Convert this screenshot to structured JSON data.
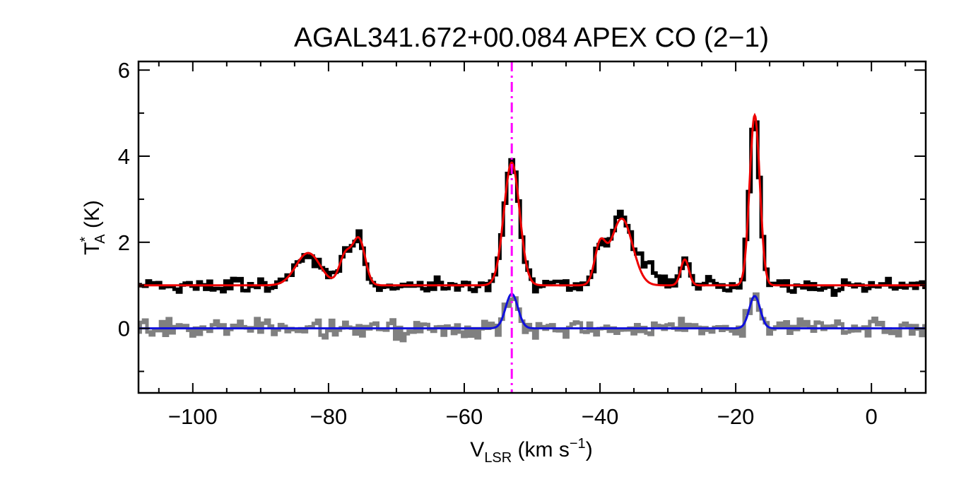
{
  "chart_data": {
    "type": "line",
    "title": "AGAL341.672+00.084  APEX CO (2−1)",
    "xlabel": {
      "main": "V",
      "sub": "LSR",
      "units_pre": " (km s",
      "units_sup": "−1",
      "units_post": ")"
    },
    "ylabel": {
      "main": "T",
      "sup": "*",
      "sub": "A",
      "units": " (K)"
    },
    "xlim": [
      -108,
      8
    ],
    "ylim": [
      -1.5,
      6.2
    ],
    "xticks": [
      -100,
      -80,
      -60,
      -40,
      -20,
      0
    ],
    "xtick_labels": [
      "−100",
      "−80",
      "−60",
      "−40",
      "−20",
      "0"
    ],
    "yticks": [
      0,
      2,
      4,
      6
    ],
    "ytick_labels": [
      "0",
      "2",
      "4",
      "6"
    ],
    "grid": false,
    "legend": "none",
    "marker_line": {
      "x": -53,
      "style": "dash-dot",
      "color": "#ff00ff"
    },
    "series": [
      {
        "role": "observed spectrum",
        "style": "step",
        "color": "#000000",
        "offset": 1.0,
        "noise_rms": 0.12,
        "components": [
          {
            "center": -83,
            "amp": 0.75,
            "sigma": 1.8
          },
          {
            "center": -77.5,
            "amp": 0.7,
            "sigma": 0.9
          },
          {
            "center": -75.5,
            "amp": 1.05,
            "sigma": 0.9
          },
          {
            "center": -53,
            "amp": 2.85,
            "sigma": 1.15
          },
          {
            "center": -40,
            "amp": 0.85,
            "sigma": 0.8
          },
          {
            "center": -36.8,
            "amp": 1.55,
            "sigma": 1.6
          },
          {
            "center": -33,
            "amp": 0.35,
            "sigma": 1.5
          },
          {
            "center": -27.5,
            "amp": 0.6,
            "sigma": 0.6
          },
          {
            "center": -17.2,
            "amp": 3.95,
            "sigma": 0.75
          }
        ]
      },
      {
        "role": "fit",
        "style": "line",
        "color": "#ee0000",
        "offset": 1.0,
        "components": [
          {
            "center": -83,
            "amp": 0.75,
            "sigma": 1.8
          },
          {
            "center": -77.5,
            "amp": 0.7,
            "sigma": 0.9
          },
          {
            "center": -75.5,
            "amp": 1.05,
            "sigma": 0.9
          },
          {
            "center": -53,
            "amp": 2.85,
            "sigma": 1.15
          },
          {
            "center": -40,
            "amp": 0.85,
            "sigma": 0.8
          },
          {
            "center": -36.8,
            "amp": 1.55,
            "sigma": 1.6
          },
          {
            "center": -27.5,
            "amp": 0.6,
            "sigma": 0.6
          },
          {
            "center": -17.2,
            "amp": 3.95,
            "sigma": 0.75
          }
        ]
      },
      {
        "role": "residual / second spectrum",
        "style": "step",
        "color": "#808080",
        "offset": 0.0,
        "noise_rms": 0.14,
        "components": [
          {
            "center": -53,
            "amp": 0.8,
            "sigma": 0.9
          },
          {
            "center": -17.2,
            "amp": 0.75,
            "sigma": 0.8
          }
        ]
      },
      {
        "role": "fit 2",
        "style": "line",
        "color": "#1010dd",
        "offset": 0.0,
        "components": [
          {
            "center": -53,
            "amp": 0.8,
            "sigma": 0.9
          },
          {
            "center": -17.2,
            "amp": 0.75,
            "sigma": 0.8
          }
        ]
      }
    ]
  }
}
